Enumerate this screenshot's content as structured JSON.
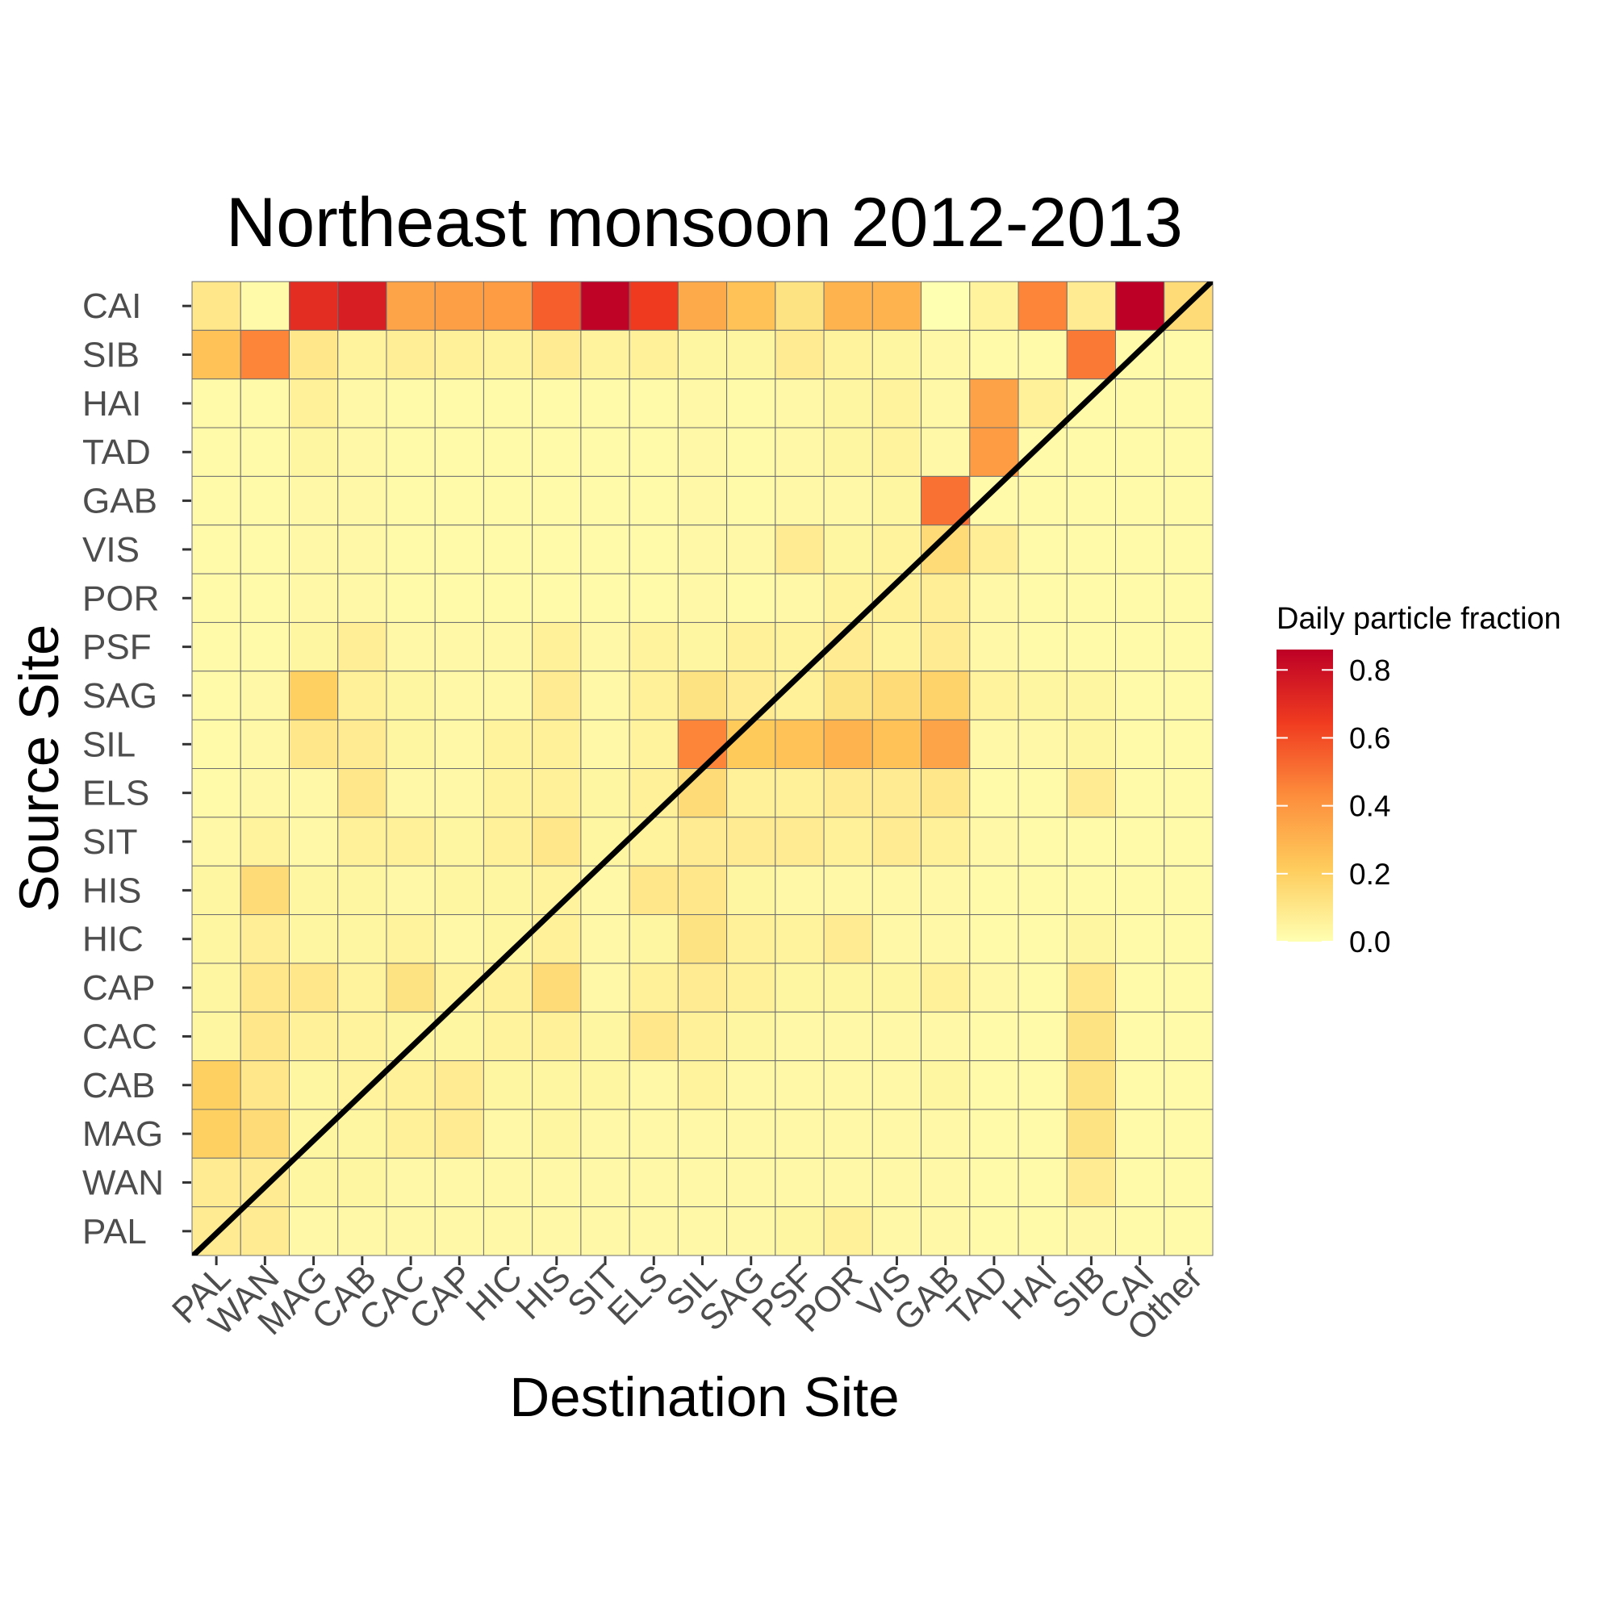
{
  "chart_data": {
    "type": "heatmap",
    "title": "Northeast monsoon 2012-2013",
    "xlabel": "Destination Site",
    "ylabel": "Source Site",
    "x_categories": [
      "PAL",
      "WAN",
      "MAG",
      "CAB",
      "CAC",
      "CAP",
      "HIC",
      "HIS",
      "SIT",
      "ELS",
      "SIL",
      "SAG",
      "PSF",
      "POR",
      "VIS",
      "GAB",
      "TAD",
      "HAI",
      "SIB",
      "CAI",
      "Other"
    ],
    "y_categories": [
      "CAI",
      "SIB",
      "HAI",
      "TAD",
      "GAB",
      "VIS",
      "POR",
      "PSF",
      "SAG",
      "SIL",
      "ELS",
      "SIT",
      "HIS",
      "HIC",
      "CAP",
      "CAC",
      "CAB",
      "MAG",
      "WAN",
      "PAL"
    ],
    "values": [
      [
        0.1,
        0.02,
        0.7,
        0.75,
        0.35,
        0.37,
        0.38,
        0.55,
        0.85,
        0.65,
        0.33,
        0.25,
        0.12,
        0.3,
        0.3,
        0.0,
        0.05,
        0.45,
        0.08,
        0.86,
        0.15
      ],
      [
        0.25,
        0.45,
        0.1,
        0.05,
        0.07,
        0.06,
        0.05,
        0.08,
        0.05,
        0.06,
        0.04,
        0.04,
        0.08,
        0.05,
        0.04,
        0.03,
        0.02,
        0.02,
        0.48,
        0.02,
        0.02
      ],
      [
        0.02,
        0.02,
        0.06,
        0.03,
        0.02,
        0.02,
        0.02,
        0.02,
        0.02,
        0.02,
        0.03,
        0.02,
        0.03,
        0.04,
        0.05,
        0.03,
        0.36,
        0.06,
        0.02,
        0.02,
        0.02
      ],
      [
        0.02,
        0.02,
        0.04,
        0.03,
        0.02,
        0.02,
        0.02,
        0.02,
        0.02,
        0.02,
        0.03,
        0.02,
        0.03,
        0.04,
        0.05,
        0.03,
        0.38,
        0.02,
        0.02,
        0.02,
        0.02
      ],
      [
        0.02,
        0.02,
        0.03,
        0.03,
        0.02,
        0.02,
        0.02,
        0.02,
        0.02,
        0.02,
        0.03,
        0.02,
        0.03,
        0.03,
        0.04,
        0.5,
        0.02,
        0.02,
        0.02,
        0.02,
        0.02
      ],
      [
        0.02,
        0.02,
        0.03,
        0.03,
        0.02,
        0.02,
        0.02,
        0.02,
        0.02,
        0.02,
        0.03,
        0.03,
        0.08,
        0.04,
        0.05,
        0.15,
        0.07,
        0.02,
        0.02,
        0.02,
        0.02
      ],
      [
        0.02,
        0.02,
        0.03,
        0.03,
        0.02,
        0.02,
        0.02,
        0.02,
        0.02,
        0.02,
        0.03,
        0.02,
        0.03,
        0.05,
        0.06,
        0.07,
        0.03,
        0.02,
        0.02,
        0.02,
        0.02
      ],
      [
        0.02,
        0.02,
        0.04,
        0.07,
        0.03,
        0.03,
        0.03,
        0.06,
        0.03,
        0.05,
        0.04,
        0.06,
        0.05,
        0.08,
        0.05,
        0.08,
        0.03,
        0.02,
        0.02,
        0.02,
        0.02
      ],
      [
        0.02,
        0.03,
        0.2,
        0.06,
        0.04,
        0.03,
        0.03,
        0.08,
        0.03,
        0.06,
        0.12,
        0.08,
        0.06,
        0.12,
        0.15,
        0.18,
        0.05,
        0.04,
        0.04,
        0.02,
        0.02
      ],
      [
        0.02,
        0.03,
        0.1,
        0.08,
        0.04,
        0.03,
        0.05,
        0.06,
        0.03,
        0.05,
        0.45,
        0.22,
        0.25,
        0.3,
        0.25,
        0.35,
        0.03,
        0.03,
        0.04,
        0.02,
        0.02
      ],
      [
        0.02,
        0.03,
        0.03,
        0.1,
        0.03,
        0.03,
        0.05,
        0.06,
        0.04,
        0.06,
        0.15,
        0.06,
        0.06,
        0.08,
        0.08,
        0.1,
        0.02,
        0.02,
        0.08,
        0.02,
        0.02
      ],
      [
        0.03,
        0.05,
        0.03,
        0.06,
        0.06,
        0.04,
        0.06,
        0.1,
        0.04,
        0.05,
        0.08,
        0.08,
        0.08,
        0.06,
        0.08,
        0.06,
        0.03,
        0.02,
        0.02,
        0.02,
        0.02
      ],
      [
        0.04,
        0.15,
        0.04,
        0.04,
        0.03,
        0.04,
        0.04,
        0.05,
        0.03,
        0.1,
        0.1,
        0.04,
        0.03,
        0.03,
        0.03,
        0.03,
        0.02,
        0.02,
        0.02,
        0.02,
        0.02
      ],
      [
        0.04,
        0.07,
        0.04,
        0.04,
        0.05,
        0.03,
        0.04,
        0.06,
        0.03,
        0.04,
        0.12,
        0.06,
        0.05,
        0.08,
        0.03,
        0.03,
        0.02,
        0.02,
        0.04,
        0.02,
        0.02
      ],
      [
        0.04,
        0.1,
        0.1,
        0.05,
        0.12,
        0.05,
        0.06,
        0.15,
        0.03,
        0.06,
        0.08,
        0.06,
        0.04,
        0.04,
        0.04,
        0.06,
        0.03,
        0.02,
        0.1,
        0.02,
        0.02
      ],
      [
        0.04,
        0.1,
        0.06,
        0.05,
        0.04,
        0.04,
        0.05,
        0.06,
        0.04,
        0.1,
        0.06,
        0.04,
        0.03,
        0.03,
        0.03,
        0.03,
        0.02,
        0.02,
        0.12,
        0.02,
        0.02
      ],
      [
        0.2,
        0.1,
        0.04,
        0.05,
        0.06,
        0.08,
        0.04,
        0.04,
        0.04,
        0.03,
        0.05,
        0.03,
        0.03,
        0.03,
        0.03,
        0.04,
        0.02,
        0.02,
        0.12,
        0.02,
        0.02
      ],
      [
        0.2,
        0.15,
        0.04,
        0.04,
        0.06,
        0.08,
        0.03,
        0.04,
        0.03,
        0.03,
        0.03,
        0.03,
        0.03,
        0.03,
        0.03,
        0.03,
        0.02,
        0.02,
        0.12,
        0.02,
        0.02
      ],
      [
        0.08,
        0.08,
        0.04,
        0.04,
        0.03,
        0.03,
        0.03,
        0.03,
        0.03,
        0.03,
        0.03,
        0.03,
        0.03,
        0.03,
        0.03,
        0.03,
        0.02,
        0.02,
        0.08,
        0.02,
        0.02
      ],
      [
        0.08,
        0.08,
        0.03,
        0.03,
        0.03,
        0.03,
        0.03,
        0.03,
        0.03,
        0.03,
        0.03,
        0.03,
        0.04,
        0.06,
        0.03,
        0.03,
        0.02,
        0.02,
        0.03,
        0.02,
        0.02
      ]
    ],
    "colorbar": {
      "title": "Daily particle fraction",
      "min": 0,
      "max": 0.86,
      "ticks": [
        "0.0",
        "0.2",
        "0.4",
        "0.6",
        "0.8"
      ],
      "tick_values": [
        0,
        0.2,
        0.4,
        0.6,
        0.8
      ],
      "colors": [
        "#ffffb2",
        "#fecc5c",
        "#fd8d3c",
        "#f03b20",
        "#bd0026"
      ]
    },
    "diagonal_line": true,
    "grid": true
  }
}
